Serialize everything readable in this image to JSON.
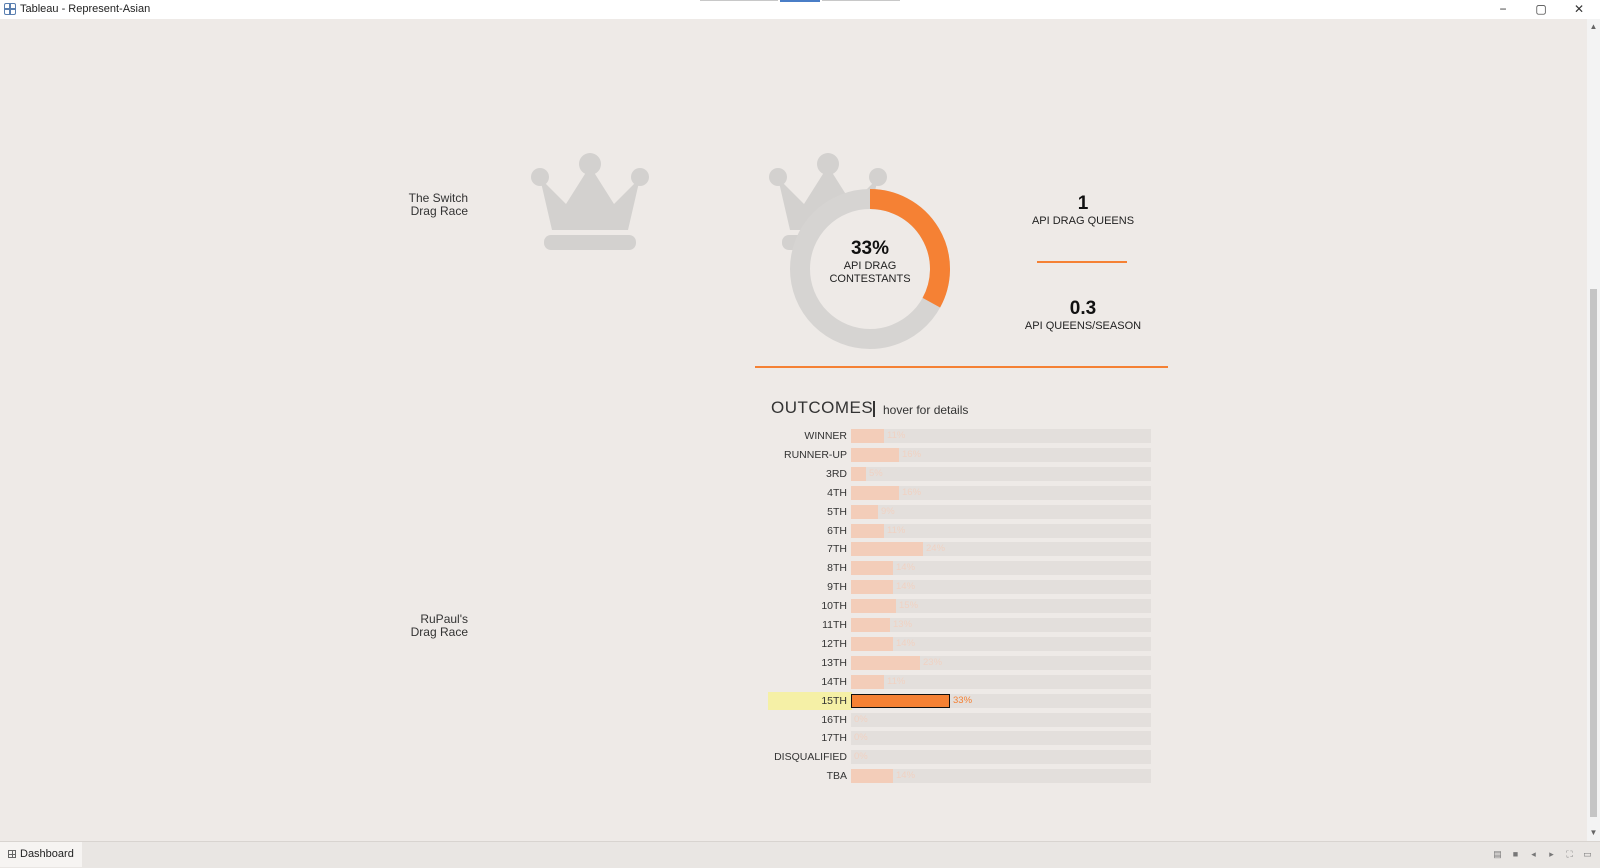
{
  "window": {
    "title": "Tableau - Represent-Asian",
    "controls": {
      "minimize": "−",
      "maximize": "▢",
      "close": "✕"
    }
  },
  "shows": [
    {
      "line1": "The Switch",
      "line2": "Drag Race"
    },
    {
      "line1": "RuPaul's",
      "line2": "Drag Race"
    }
  ],
  "donut": {
    "percent_text": "33%",
    "caption_line1": "API DRAG",
    "caption_line2": "CONTESTANTS",
    "fraction": 0.33,
    "colors": {
      "fill": "#f58134",
      "track": "#d6d4d2"
    }
  },
  "kpis": [
    {
      "value": "1",
      "caption": "API DRAG QUEENS"
    },
    {
      "value": "0.3",
      "caption": "API QUEENS/SEASON"
    }
  ],
  "outcomes": {
    "title": "OUTCOMES",
    "subtitle": "hover for details",
    "rows": [
      {
        "label": "WINNER",
        "percent": 11,
        "value_text": "11%"
      },
      {
        "label": "RUNNER-UP",
        "percent": 16,
        "value_text": "16%"
      },
      {
        "label": "3RD",
        "percent": 5,
        "value_text": "5%"
      },
      {
        "label": "4TH",
        "percent": 16,
        "value_text": "16%"
      },
      {
        "label": "5TH",
        "percent": 9,
        "value_text": "9%"
      },
      {
        "label": "6TH",
        "percent": 11,
        "value_text": "11%"
      },
      {
        "label": "7TH",
        "percent": 24,
        "value_text": "24%"
      },
      {
        "label": "8TH",
        "percent": 14,
        "value_text": "14%"
      },
      {
        "label": "9TH",
        "percent": 14,
        "value_text": "14%"
      },
      {
        "label": "10TH",
        "percent": 15,
        "value_text": "15%"
      },
      {
        "label": "11TH",
        "percent": 13,
        "value_text": "13%"
      },
      {
        "label": "12TH",
        "percent": 14,
        "value_text": "14%"
      },
      {
        "label": "13TH",
        "percent": 23,
        "value_text": "23%"
      },
      {
        "label": "14TH",
        "percent": 11,
        "value_text": "11%"
      },
      {
        "label": "15TH",
        "percent": 33,
        "value_text": "33%",
        "selected": true
      },
      {
        "label": "16TH",
        "percent": 0,
        "value_text": "0%"
      },
      {
        "label": "17TH",
        "percent": 0,
        "value_text": "0%"
      },
      {
        "label": "DISQUALIFIED",
        "percent": 0,
        "value_text": "0%"
      },
      {
        "label": "TBA",
        "percent": 14,
        "value_text": "14%"
      }
    ],
    "colors": {
      "bar": "#f3cdb9",
      "selected": "#f58134",
      "highlight": "#f5f0a6"
    }
  },
  "sheet_tab": {
    "label": "Dashboard"
  }
}
